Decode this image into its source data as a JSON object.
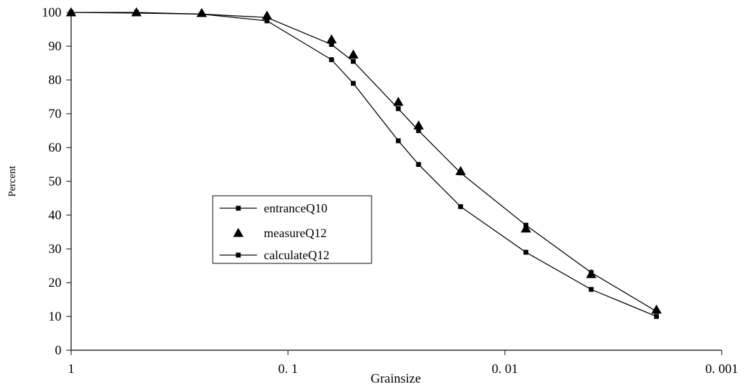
{
  "chart_data": {
    "type": "line",
    "xlabel": "Grainsize",
    "ylabel": "Percent",
    "x_scale": "log",
    "x_reversed": true,
    "xlim": [
      1,
      0.001
    ],
    "ylim": [
      0,
      100
    ],
    "x_tick_labels": [
      "1",
      "0. 1",
      "0. 01",
      "0. 001"
    ],
    "x_tick_values": [
      1,
      0.1,
      0.01,
      0.001
    ],
    "y_ticks": [
      0,
      10,
      20,
      30,
      40,
      50,
      60,
      70,
      80,
      90,
      100
    ],
    "grid": false,
    "legend_position": "center-left",
    "series": [
      {
        "name": "entranceQ10",
        "marker": "square",
        "line": true,
        "x": [
          1,
          0.5,
          0.25,
          0.125,
          0.063,
          0.05,
          0.031,
          0.025,
          0.016,
          0.008,
          0.004,
          0.002
        ],
        "y": [
          100,
          99.8,
          99.5,
          97.5,
          86,
          79,
          62,
          55,
          42.5,
          29,
          18,
          10
        ]
      },
      {
        "name": "measureQ12",
        "marker": "triangle",
        "line": false,
        "x": [
          1,
          0.5,
          0.25,
          0.125,
          0.063,
          0.05,
          0.031,
          0.025,
          0.016,
          0.008,
          0.004,
          0.002
        ],
        "y": [
          100,
          100,
          99.8,
          99,
          92,
          87.5,
          73.5,
          66.5,
          53,
          36,
          22.5,
          12
        ]
      },
      {
        "name": "calculateQ12",
        "marker": "square",
        "line": true,
        "x": [
          1,
          0.5,
          0.25,
          0.125,
          0.063,
          0.05,
          0.031,
          0.025,
          0.016,
          0.008,
          0.004,
          0.002
        ],
        "y": [
          100,
          100,
          99.5,
          98.5,
          90.5,
          85.5,
          71.5,
          65,
          52.5,
          37,
          23,
          11.5
        ]
      }
    ]
  }
}
